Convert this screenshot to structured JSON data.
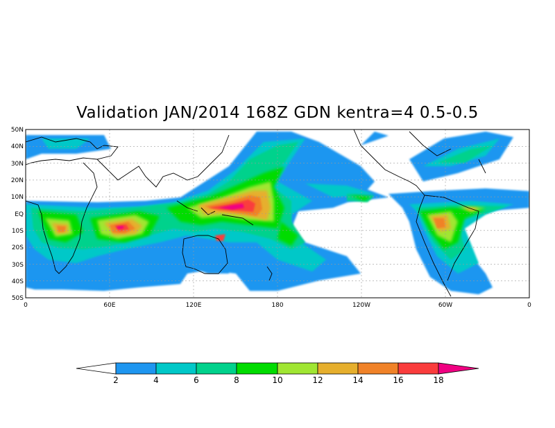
{
  "title": "Validation JAN/2014 168Z GDN kentra=4 0.5-0.5",
  "map": {
    "lat_labels": [
      "50N",
      "40N",
      "30N",
      "20N",
      "10N",
      "EQ",
      "10S",
      "20S",
      "30S",
      "40S",
      "50S"
    ],
    "lon_labels": [
      "0",
      "60E",
      "120E",
      "180",
      "120W",
      "60W",
      "0"
    ],
    "grid": true,
    "projection": "cylindrical",
    "lat_range": [
      -50,
      50
    ],
    "lon_range": [
      0,
      360
    ]
  },
  "colorbar": {
    "levels": [
      "2",
      "4",
      "6",
      "8",
      "10",
      "12",
      "14",
      "16",
      "18"
    ],
    "colors": [
      "#ffffff",
      "#1e96f0",
      "#00c8c8",
      "#00d28c",
      "#00dc00",
      "#a0e632",
      "#e6af2d",
      "#f08228",
      "#fa3c3c",
      "#f00082"
    ]
  }
}
